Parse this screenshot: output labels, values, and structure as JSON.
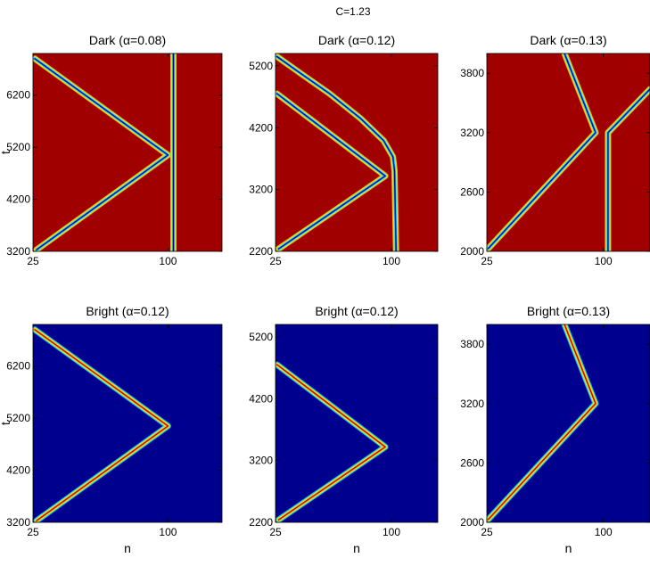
{
  "figure": {
    "title": "C=1.23"
  },
  "chart_data": [
    {
      "type": "heatmap",
      "title": "Dark (α=0.08)",
      "xlabel": "",
      "ylabel": "t",
      "xlim": [
        25,
        130
      ],
      "ylim": [
        3200,
        7000
      ],
      "xticks": [
        "25",
        "100"
      ],
      "yticks": [
        "3200",
        "4200",
        "5200",
        "6200"
      ],
      "background": "#a00000",
      "trajectories": [
        {
          "points": [
            [
              26,
              6900
            ],
            [
              100,
              5050
            ],
            [
              27,
              3230
            ]
          ]
        },
        {
          "points": [
            [
              103,
              7000
            ],
            [
              103,
              3200
            ]
          ]
        }
      ]
    },
    {
      "type": "heatmap",
      "title": "Dark (α=0.12)",
      "xlabel": "",
      "ylabel": "",
      "xlim": [
        25,
        130
      ],
      "ylim": [
        2200,
        5400
      ],
      "xticks": [
        "25",
        "100"
      ],
      "yticks": [
        "2200",
        "3200",
        "4200",
        "5200"
      ],
      "background": "#a00000",
      "trajectories": [
        {
          "points": [
            [
              26,
              5350
            ],
            [
              40,
              5100
            ],
            [
              60,
              4750
            ],
            [
              80,
              4350
            ],
            [
              95,
              3990
            ],
            [
              101,
              3730
            ],
            [
              102,
              3500
            ],
            [
              103,
              2200
            ]
          ]
        },
        {
          "points": [
            [
              26,
              4750
            ],
            [
              96,
              3420
            ],
            [
              27,
              2240
            ]
          ]
        }
      ]
    },
    {
      "type": "heatmap",
      "title": "Dark (α=0.13)",
      "xlabel": "",
      "ylabel": "",
      "xlim": [
        25,
        130
      ],
      "ylim": [
        2000,
        4000
      ],
      "xticks": [
        "25",
        "100"
      ],
      "yticks": [
        "2000",
        "2600",
        "3200",
        "3800"
      ],
      "background": "#a00000",
      "trajectories": [
        {
          "points": [
            [
              75,
              4000
            ],
            [
              95,
              3200
            ],
            [
              26,
              2030
            ]
          ]
        },
        {
          "points": [
            [
              130,
              3640
            ],
            [
              103,
              3200
            ],
            [
              103,
              2000
            ]
          ]
        }
      ]
    },
    {
      "type": "heatmap",
      "title": "Bright (α=0.12)",
      "xlabel": "n",
      "ylabel": "t",
      "xlim": [
        25,
        130
      ],
      "ylim": [
        3200,
        7000
      ],
      "xticks": [
        "25",
        "100"
      ],
      "yticks": [
        "3200",
        "4200",
        "5200",
        "6200"
      ],
      "background": "#00008f",
      "trajectories": [
        {
          "points": [
            [
              26,
              6900
            ],
            [
              100,
              5050
            ],
            [
              27,
              3230
            ]
          ]
        }
      ]
    },
    {
      "type": "heatmap",
      "title": "Bright (α=0.12)",
      "xlabel": "n",
      "ylabel": "",
      "xlim": [
        25,
        130
      ],
      "ylim": [
        2200,
        5400
      ],
      "xticks": [
        "25",
        "100"
      ],
      "yticks": [
        "2200",
        "3200",
        "4200",
        "5200"
      ],
      "background": "#00008f",
      "trajectories": [
        {
          "points": [
            [
              26,
              4750
            ],
            [
              96,
              3420
            ],
            [
              27,
              2240
            ]
          ]
        }
      ]
    },
    {
      "type": "heatmap",
      "title": "Bright (α=0.13)",
      "xlabel": "n",
      "ylabel": "",
      "xlim": [
        25,
        130
      ],
      "ylim": [
        2000,
        4000
      ],
      "xticks": [
        "25",
        "100"
      ],
      "yticks": [
        "2000",
        "2600",
        "3200",
        "3800"
      ],
      "background": "#00008f",
      "trajectories": [
        {
          "points": [
            [
              75,
              4000
            ],
            [
              95,
              3200
            ],
            [
              26,
              2030
            ]
          ]
        }
      ]
    }
  ]
}
